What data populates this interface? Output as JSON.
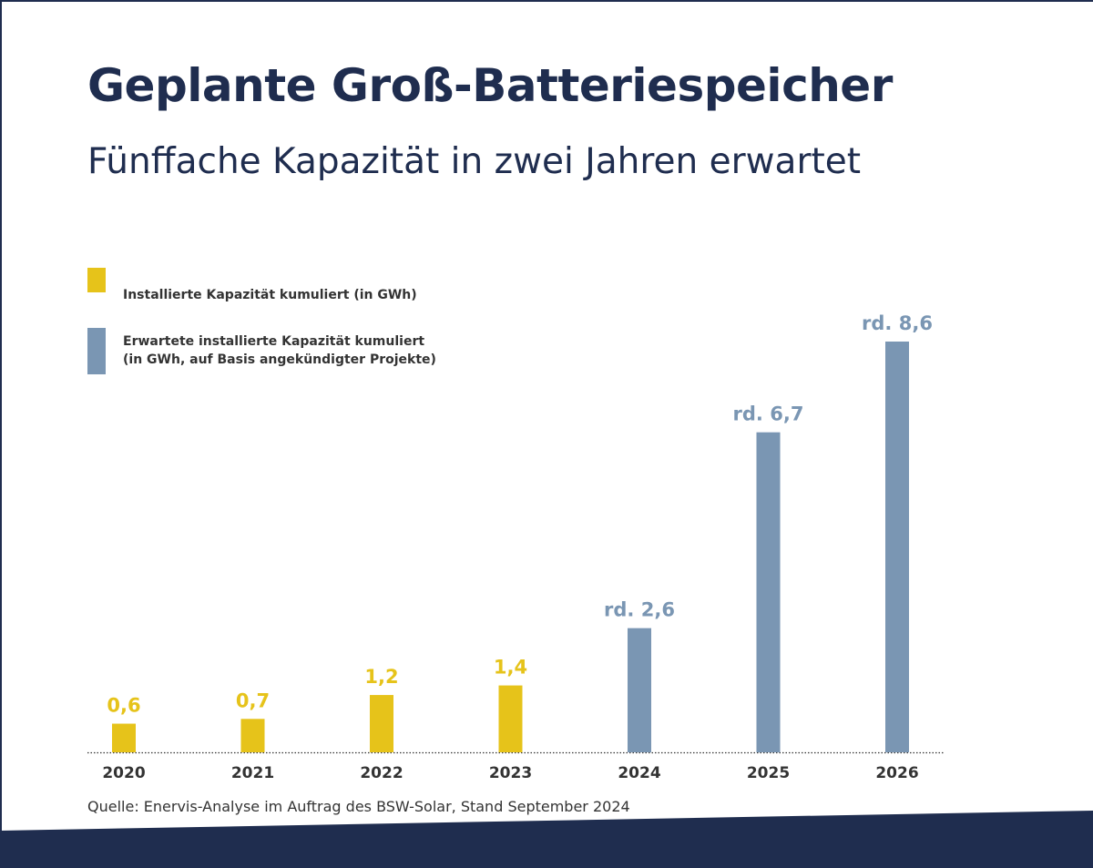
{
  "header": {
    "title": "Geplante Groß-Batteriespeicher",
    "subtitle": "Fünffache Kapazität in zwei Jahren erwartet"
  },
  "legend": [
    {
      "lines": [
        "Installierte Kapazität kumuliert (in GWh)"
      ],
      "color": "#e6c31a"
    },
    {
      "lines": [
        "Erwartete installierte Kapazität kumuliert",
        "(in GWh, auf Basis angekündigter Projekte)"
      ],
      "color": "#7a96b3"
    }
  ],
  "colors": {
    "title": "#1f2d4f",
    "installed": "#e6c31a",
    "expected": "#7a96b3",
    "frame": "#1f2d4f"
  },
  "chart_data": {
    "type": "bar",
    "categories": [
      "2020",
      "2021",
      "2022",
      "2023",
      "2024",
      "2025",
      "2026"
    ],
    "values": [
      0.6,
      0.7,
      1.2,
      1.4,
      2.6,
      6.7,
      8.6
    ],
    "labels": [
      "0,6",
      "0,7",
      "1,2",
      "1,4",
      "rd. 2,6",
      "rd. 6,7",
      "rd. 8,6"
    ],
    "status": [
      "installed",
      "installed",
      "installed",
      "installed",
      "expected",
      "expected",
      "expected"
    ],
    "series": [
      {
        "name": "Installierte Kapazität kumuliert (in GWh)",
        "categories": [
          "2020",
          "2021",
          "2022",
          "2023"
        ]
      },
      {
        "name": "Erwartete installierte Kapazität kumuliert (in GWh, auf Basis angekündigter Projekte)",
        "categories": [
          "2024",
          "2025",
          "2026"
        ]
      }
    ],
    "title": "Geplante Groß-Batteriespeicher",
    "subtitle": "Fünffache Kapazität in zwei Jahren erwartet",
    "xlabel": "",
    "ylabel": "",
    "ylim": [
      0,
      8.6
    ],
    "grid": false,
    "legend_position": "top-left",
    "baseline": "dotted"
  },
  "footer": {
    "source": "Quelle: Enervis-Analyse im Auftrag des BSW-Solar, Stand September 2024"
  }
}
